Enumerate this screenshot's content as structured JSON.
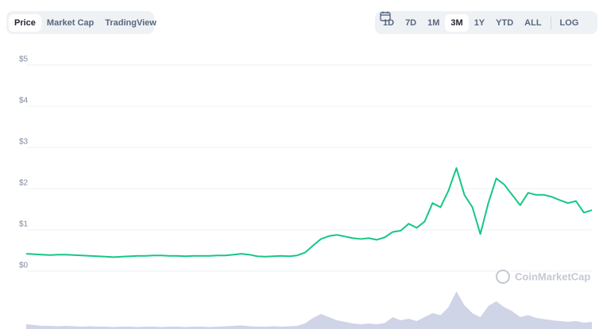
{
  "tabs": {
    "items": [
      "Price",
      "Market Cap",
      "TradingView"
    ],
    "active": 0
  },
  "ranges": {
    "items": [
      "1D",
      "7D",
      "1M",
      "3M",
      "1Y",
      "YTD",
      "ALL"
    ],
    "active": 3,
    "log": "LOG"
  },
  "chart_data": {
    "type": "line",
    "watermark": "CoinMarketCap",
    "categories": [
      null,
      null,
      null,
      null,
      null,
      null,
      null,
      null,
      null,
      null,
      null,
      null,
      null,
      null,
      null,
      null,
      null,
      null,
      null,
      null,
      null,
      null,
      null,
      null,
      null,
      null,
      null,
      null,
      null,
      null,
      null,
      null,
      null,
      null,
      null,
      null,
      null,
      null,
      null,
      null,
      null,
      null,
      null,
      null,
      null,
      null,
      null,
      null,
      null,
      null,
      null,
      null,
      null,
      null,
      null,
      null,
      null,
      null,
      null,
      null,
      null,
      null,
      null,
      null,
      null,
      null,
      null,
      null,
      null,
      null,
      null,
      null
    ],
    "series": [
      {
        "name": "Price",
        "color": "#16c784",
        "values": [
          0.42,
          0.41,
          0.4,
          0.39,
          0.4,
          0.4,
          0.39,
          0.38,
          0.37,
          0.36,
          0.35,
          0.34,
          0.35,
          0.36,
          0.37,
          0.37,
          0.38,
          0.38,
          0.37,
          0.37,
          0.36,
          0.37,
          0.37,
          0.37,
          0.38,
          0.38,
          0.4,
          0.42,
          0.4,
          0.36,
          0.35,
          0.36,
          0.37,
          0.36,
          0.38,
          0.45,
          0.62,
          0.78,
          0.85,
          0.88,
          0.84,
          0.8,
          0.78,
          0.8,
          0.76,
          0.82,
          0.95,
          0.98,
          1.15,
          1.05,
          1.2,
          1.65,
          1.55,
          1.95,
          2.5,
          1.85,
          1.55,
          0.9,
          1.65,
          2.25,
          2.1,
          1.85,
          1.6,
          1.9,
          1.85,
          1.85,
          1.8,
          1.72,
          1.65,
          1.7,
          1.42,
          1.48
        ]
      },
      {
        "name": "Volume",
        "color": "#cfd4e6",
        "axis": "y2",
        "values": [
          12,
          10,
          8,
          8,
          7,
          8,
          7,
          6,
          7,
          6,
          6,
          5,
          6,
          6,
          5,
          6,
          6,
          5,
          6,
          6,
          5,
          6,
          6,
          5,
          6,
          7,
          8,
          9,
          7,
          6,
          6,
          7,
          6,
          7,
          8,
          14,
          28,
          38,
          30,
          22,
          18,
          14,
          12,
          14,
          12,
          15,
          30,
          22,
          26,
          20,
          30,
          40,
          35,
          55,
          95,
          60,
          40,
          30,
          58,
          70,
          55,
          45,
          30,
          35,
          28,
          25,
          22,
          20,
          18,
          20,
          16,
          18
        ]
      }
    ],
    "ylim": [
      0,
      5
    ],
    "yticks": [
      {
        "value": 0,
        "label": "$0"
      },
      {
        "value": 1,
        "label": "$1"
      },
      {
        "value": 2,
        "label": "$2"
      },
      {
        "value": 3,
        "label": "$3"
      },
      {
        "value": 4,
        "label": "$4"
      },
      {
        "value": 5,
        "label": "$5"
      }
    ],
    "y2lim": [
      0,
      100
    ],
    "grid": true
  }
}
